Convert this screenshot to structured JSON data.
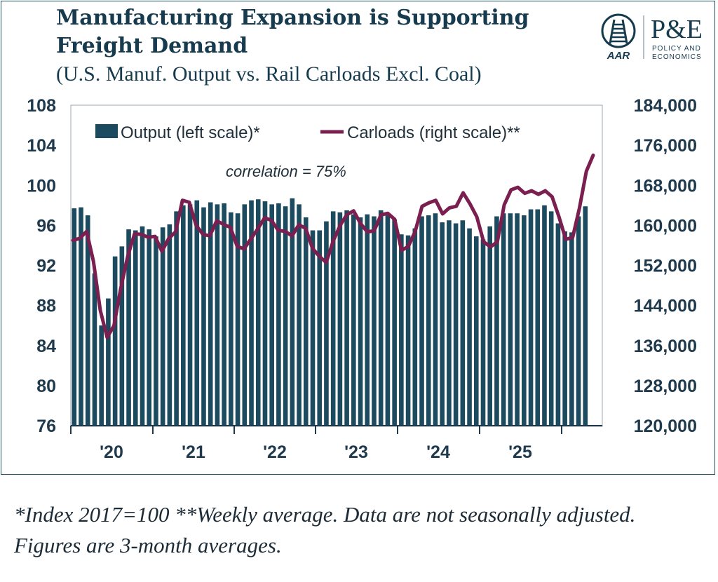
{
  "header": {
    "title": "Manufacturing Expansion is Supporting Freight Demand",
    "subtitle": "(U.S. Manuf. Output vs. Rail Carloads Excl. Coal)"
  },
  "logos": {
    "aar": "AAR",
    "pe": "P&E",
    "pe_sub1": "POLICY AND",
    "pe_sub2": "ECONOMICS"
  },
  "footnote": "*Index 2017=100 **Weekly average. Data are not seasonally adjusted. Figures are 3-month averages.",
  "colors": {
    "bar": "#1c4a5e",
    "line": "#7a1f4f",
    "text": "#163b4e"
  },
  "chart_data": {
    "type": "bar",
    "x_tick_labels": [
      "'20",
      "'21",
      "'22",
      "'23",
      "'24",
      "'25"
    ],
    "y_left": {
      "min": 76,
      "max": 108,
      "ticks": [
        "76",
        "80",
        "84",
        "88",
        "92",
        "96",
        "100",
        "104",
        "108"
      ]
    },
    "y_right": {
      "min": 120000,
      "max": 184000,
      "ticks": [
        "120,000",
        "128,000",
        "136,000",
        "144,000",
        "152,000",
        "160,000",
        "168,000",
        "176,000",
        "184,000"
      ]
    },
    "annotation": "correlation = 75%",
    "series": [
      {
        "name": "Output (left scale)*",
        "axis": "left",
        "type": "bar",
        "values": [
          97.7,
          97.8,
          97.0,
          91.2,
          86.0,
          88.7,
          92.9,
          93.9,
          95.6,
          95.5,
          95.9,
          95.6,
          94.9,
          95.8,
          96.1,
          97.4,
          98.0,
          98.1,
          98.5,
          97.8,
          98.3,
          98.1,
          98.2,
          97.3,
          97.2,
          98.1,
          98.5,
          98.6,
          98.4,
          98.1,
          98.2,
          97.9,
          98.7,
          98.1,
          96.8,
          95.5,
          95.5,
          96.4,
          97.4,
          97.3,
          97.5,
          97.1,
          96.8,
          97.1,
          96.9,
          97.5,
          97.0,
          96.6,
          95.1,
          95.0,
          95.7,
          96.9,
          97.0,
          97.2,
          96.3,
          96.5,
          96.2,
          96.5,
          95.7,
          94.9,
          94.6,
          95.9,
          96.9,
          97.2,
          97.2,
          97.2,
          97.0,
          97.6,
          97.6,
          98.0,
          97.4,
          96.2,
          95.4,
          95.3,
          96.9,
          97.9
        ]
      },
      {
        "name": "Carloads (right scale)**",
        "axis": "right",
        "type": "line",
        "values": [
          157000,
          157400,
          158800,
          152800,
          143000,
          137600,
          140000,
          147500,
          153800,
          158300,
          158200,
          157600,
          157800,
          154800,
          157400,
          158700,
          165000,
          164600,
          160000,
          158200,
          157900,
          160900,
          160200,
          159600,
          155800,
          155300,
          157300,
          159300,
          161500,
          161000,
          159000,
          158800,
          157900,
          160100,
          159400,
          155400,
          153800,
          152600,
          156800,
          159900,
          162100,
          162900,
          160400,
          158700,
          158900,
          162100,
          162400,
          161200,
          155000,
          155800,
          158800,
          163800,
          164500,
          165000,
          162300,
          163500,
          163800,
          166500,
          164300,
          161700,
          156700,
          155700,
          156700,
          164100,
          167100,
          167600,
          166400,
          166900,
          166200,
          166900,
          165700,
          161700,
          157200,
          157600,
          163500,
          170800,
          174000
        ]
      }
    ],
    "grid": false,
    "legend": "top"
  }
}
